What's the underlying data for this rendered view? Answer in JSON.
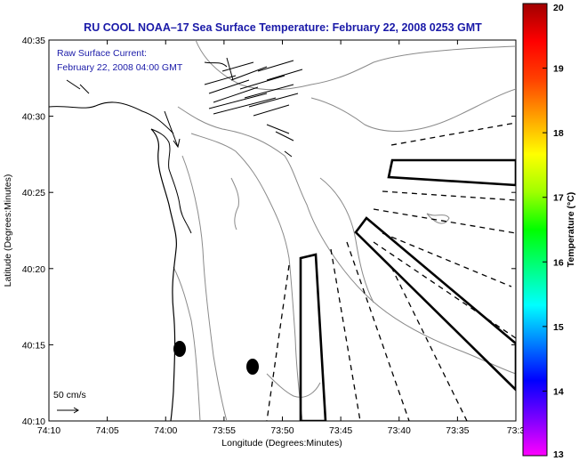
{
  "title": "RU COOL  NOAA–17  Sea Surface Temperature:  February 22, 2008 0253 GMT",
  "inset": {
    "line1": "Raw Surface Current:",
    "line2": "February 22, 2008 04:00 GMT"
  },
  "scale_label": "50 cm/s",
  "axes": {
    "xlabel": "Longitude (Degrees:Minutes)",
    "ylabel": "Latitude (Degrees:Minutes)",
    "xticks": [
      "74:10",
      "74:05",
      "74:00",
      "73:55",
      "73:50",
      "73:45",
      "73:40",
      "73:35",
      "73:3"
    ],
    "yticks": [
      "40:35",
      "40:30",
      "40:25",
      "40:20",
      "40:15",
      "40:10"
    ]
  },
  "colorbar": {
    "label": "Temperature (°C)",
    "ticks": [
      "20",
      "19",
      "18",
      "17",
      "16",
      "15",
      "14",
      "13"
    ],
    "min": 13,
    "max": 20,
    "colors": [
      "#ff00ff",
      "#7a00ff",
      "#0000ff",
      "#0080ff",
      "#00ffff",
      "#00ff80",
      "#00ff00",
      "#a0ff00",
      "#ffff00",
      "#ffa000",
      "#ff4000",
      "#ff0000",
      "#a00000"
    ]
  },
  "map_features": {
    "markers": [
      "buoy",
      "buoy"
    ],
    "boxes": [
      "shipping-lane",
      "shipping-lane",
      "shipping-lane"
    ]
  }
}
